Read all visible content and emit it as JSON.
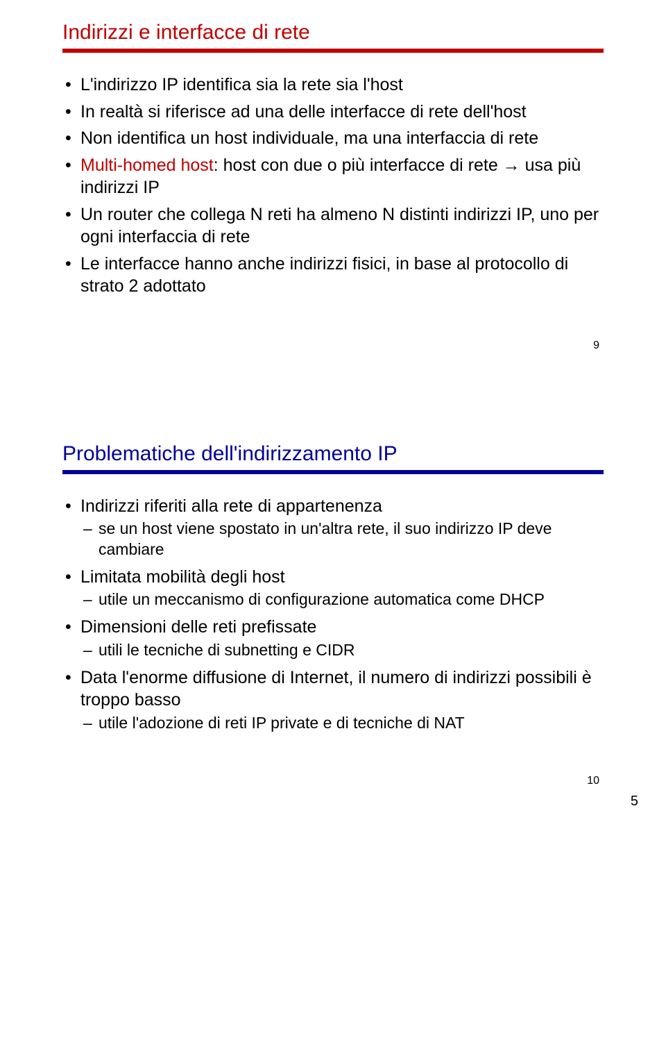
{
  "colors": {
    "title_red": "#c00000",
    "title_blue": "#000099",
    "rule_red": "#c00000",
    "rule_blue": "#000099",
    "text": "#000000",
    "background": "#ffffff"
  },
  "typography": {
    "title_fontsize": 30,
    "bullet_fontsize": 25,
    "subbullet_fontsize": 23,
    "slidenum_fontsize": 16,
    "pagenum_fontsize": 20,
    "font_family": "Arial"
  },
  "slide1": {
    "title": "Indirizzi e interfacce di rete",
    "title_color": "#c00000",
    "rule_color": "#c00000",
    "bullets": {
      "b1": "L'indirizzo IP identifica sia la rete sia l'host",
      "b2": "In realtà si riferisce ad una delle interfacce di rete dell'host",
      "b3": "Non identifica un host individuale, ma una interfaccia di rete",
      "b4_prefix": "Multi-homed host",
      "b4_rest": ": host con due o più interfacce di rete ",
      "b4_arrow": "→",
      "b4_tail": " usa più indirizzi IP",
      "b5": "Un router che collega N reti ha almeno N distinti indirizzi IP, uno per ogni interfaccia di rete",
      "b6": "Le interfacce hanno anche indirizzi fisici, in base al protocollo di strato 2 adottato"
    },
    "slide_number": "9"
  },
  "slide2": {
    "title": "Problematiche dell'indirizzamento IP",
    "title_color": "#000099",
    "rule_color": "#000099",
    "bullets": {
      "b1": "Indirizzi riferiti alla rete di appartenenza",
      "b1_s1": "se un host viene spostato in un'altra rete, il suo indirizzo IP deve cambiare",
      "b2": "Limitata mobilità degli host",
      "b2_s1": "utile un meccanismo di configurazione automatica come DHCP",
      "b3": "Dimensioni delle reti prefissate",
      "b3_s1": "utili le tecniche di subnetting e CIDR",
      "b4": "Data l'enorme diffusione di Internet, il numero di indirizzi possibili è troppo basso",
      "b4_s1": "utile l'adozione di reti IP private e di tecniche di NAT"
    },
    "slide_number": "10"
  },
  "page_number": "5"
}
